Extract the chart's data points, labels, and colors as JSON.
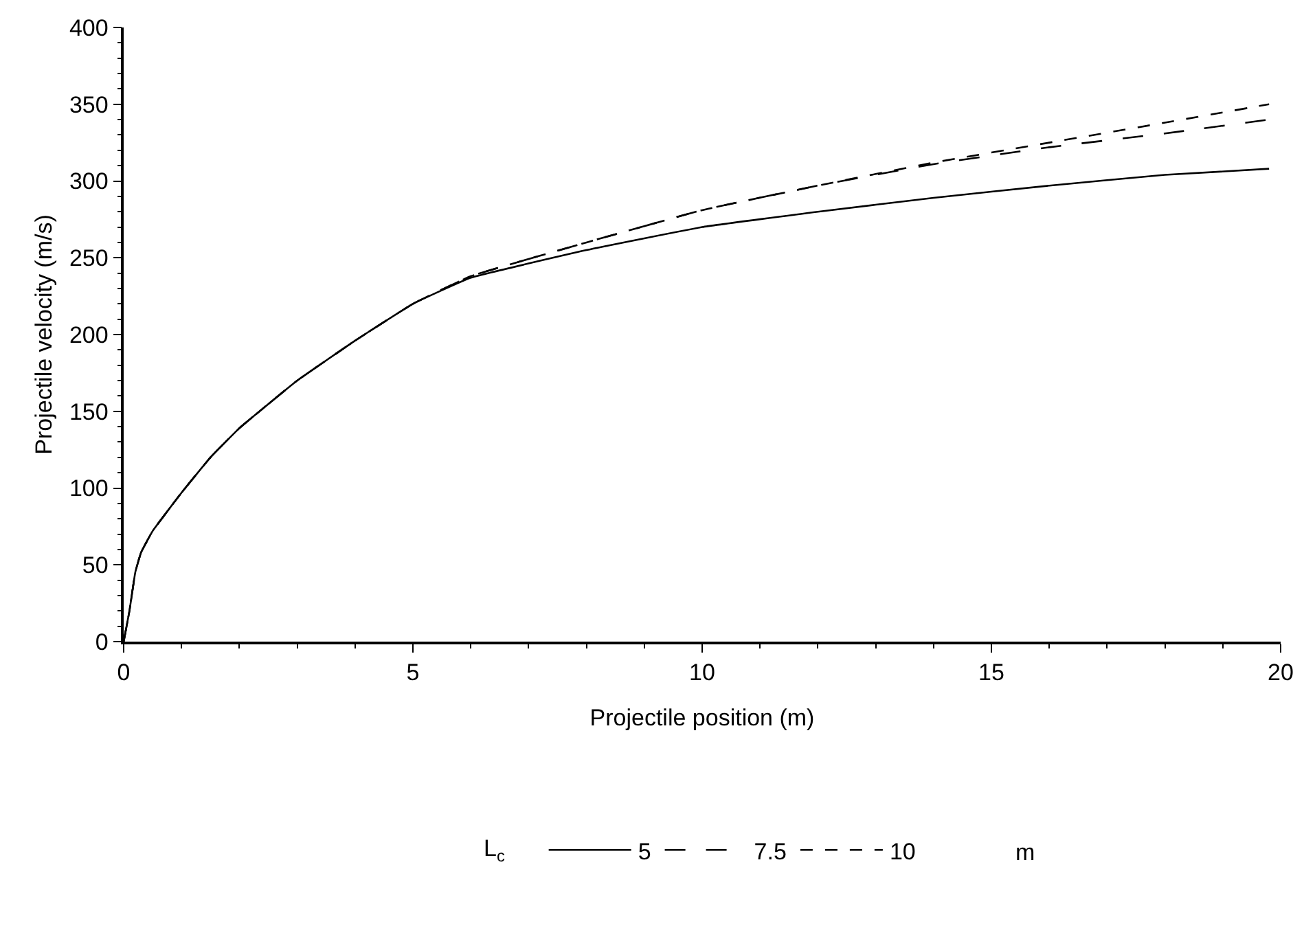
{
  "chart_data": {
    "type": "line",
    "xlabel": "Projectile position (m)",
    "ylabel": "Projectile velocity (m/s)",
    "legend_title": "L$_{c}$",
    "annotations": [
      "m"
    ],
    "legend": "bottom",
    "xlim": [
      0,
      20
    ],
    "xticks": [
      0,
      5,
      10,
      15,
      20
    ],
    "ylim": [
      0,
      400
    ],
    "yticks": [
      0,
      50,
      100,
      150,
      200,
      250,
      300,
      350,
      400
    ],
    "series": [
      {
        "name": "5",
        "color": "#000000",
        "line_style": "solid",
        "x": [
          0,
          0.1,
          0.2,
          0.3,
          0.5,
          1,
          1.5,
          2,
          3,
          4,
          5,
          6,
          8,
          10,
          12,
          14,
          16,
          18,
          19.8
        ],
        "values": [
          0,
          20,
          45,
          58,
          72,
          97,
          120,
          139,
          170,
          196,
          220,
          237,
          255,
          270,
          280,
          289,
          297,
          304,
          308
        ]
      },
      {
        "name": "7.5",
        "color": "#000000",
        "line_style": "dashed",
        "x": [
          0,
          0.1,
          0.2,
          0.3,
          0.5,
          1,
          1.5,
          2,
          3,
          4,
          5,
          6,
          8,
          10,
          12,
          14,
          16,
          18,
          19.8
        ],
        "values": [
          0,
          20,
          45,
          58,
          72,
          97,
          120,
          139,
          170,
          196,
          220,
          238,
          260,
          281,
          297,
          311,
          322,
          331,
          340
        ]
      },
      {
        "name": "10",
        "color": "#000000",
        "line_style": "dotted",
        "x": [
          0,
          0.1,
          0.2,
          0.3,
          0.5,
          1,
          1.5,
          2,
          3,
          4,
          5,
          6,
          8,
          10,
          12,
          14,
          16,
          18,
          19.8
        ],
        "values": [
          0,
          20,
          45,
          58,
          72,
          97,
          120,
          139,
          170,
          196,
          220,
          238,
          260,
          281,
          297,
          312,
          325,
          338,
          350
        ]
      }
    ]
  }
}
